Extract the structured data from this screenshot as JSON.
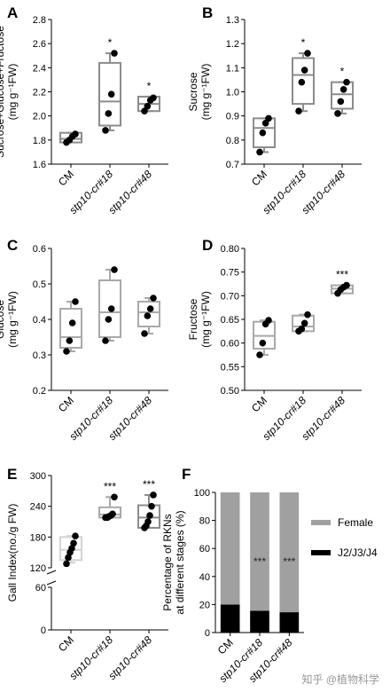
{
  "watermark": "知乎 @植物科学",
  "chart_data": [
    {
      "id": "A",
      "type": "box",
      "panel_label": "A",
      "categories": [
        "CM",
        "stp10-cr#18",
        "stp10-cr#48"
      ],
      "ylabel_lines": [
        "Sucrose+Glucose+Fructose",
        "(mg g⁻¹FW)"
      ],
      "ylim": [
        1.6,
        2.8
      ],
      "yticks": [
        "1.6",
        "1.8",
        "2.0",
        "2.2",
        "2.4",
        "2.6",
        "2.8"
      ],
      "box_colors": [
        "#8c8c8c",
        "#8c8c8c",
        "#8c8c8c"
      ],
      "boxes": [
        {
          "min": 1.78,
          "q1": 1.78,
          "median": 1.81,
          "q3": 1.86,
          "max": 1.86
        },
        {
          "min": 1.88,
          "q1": 1.92,
          "median": 2.12,
          "q3": 2.44,
          "max": 2.52
        },
        {
          "min": 2.04,
          "q1": 2.04,
          "median": 2.1,
          "q3": 2.16,
          "max": 2.16
        }
      ],
      "points": [
        [
          1.78,
          1.8,
          1.83,
          1.85
        ],
        [
          1.88,
          2.02,
          2.18,
          2.52
        ],
        [
          2.04,
          2.08,
          2.13,
          2.15
        ]
      ],
      "signif": [
        "",
        "*",
        "*"
      ]
    },
    {
      "id": "B",
      "type": "box",
      "panel_label": "B",
      "categories": [
        "CM",
        "stp10-cr#18",
        "stp10-cr#48"
      ],
      "ylabel_lines": [
        "Sucrose",
        "(mg g⁻¹FW)"
      ],
      "ylim": [
        0.7,
        1.3
      ],
      "yticks": [
        "0.7",
        "0.8",
        "0.9",
        "1.0",
        "1.1",
        "1.2",
        "1.3"
      ],
      "box_colors": [
        "#8c8c8c",
        "#8c8c8c",
        "#8c8c8c"
      ],
      "boxes": [
        {
          "min": 0.75,
          "q1": 0.77,
          "median": 0.85,
          "q3": 0.89,
          "max": 0.89
        },
        {
          "min": 0.92,
          "q1": 0.95,
          "median": 1.07,
          "q3": 1.14,
          "max": 1.16
        },
        {
          "min": 0.91,
          "q1": 0.93,
          "median": 0.99,
          "q3": 1.04,
          "max": 1.04
        }
      ],
      "points": [
        [
          0.75,
          0.83,
          0.87,
          0.89
        ],
        [
          0.92,
          1.04,
          1.09,
          1.16
        ],
        [
          0.91,
          0.96,
          1.01,
          1.04
        ]
      ],
      "signif": [
        "",
        "*",
        "*"
      ]
    },
    {
      "id": "C",
      "type": "box",
      "panel_label": "C",
      "categories": [
        "CM",
        "stp10-cr#18",
        "stp10-cr#48"
      ],
      "ylabel_lines": [
        "Glucose",
        "(mg g⁻¹FW)"
      ],
      "ylim": [
        0.2,
        0.6
      ],
      "yticks": [
        "0.2",
        "0.3",
        "0.4",
        "0.5",
        "0.6"
      ],
      "box_colors": [
        "#a9a9a9",
        "#a9a9a9",
        "#a9a9a9"
      ],
      "boxes": [
        {
          "min": 0.31,
          "q1": 0.32,
          "median": 0.35,
          "q3": 0.43,
          "max": 0.45
        },
        {
          "min": 0.34,
          "q1": 0.35,
          "median": 0.42,
          "q3": 0.51,
          "max": 0.54
        },
        {
          "min": 0.36,
          "q1": 0.38,
          "median": 0.42,
          "q3": 0.45,
          "max": 0.46
        }
      ],
      "points": [
        [
          0.31,
          0.34,
          0.39,
          0.45
        ],
        [
          0.34,
          0.4,
          0.43,
          0.54
        ],
        [
          0.36,
          0.41,
          0.43,
          0.46
        ]
      ],
      "signif": [
        "",
        "",
        ""
      ]
    },
    {
      "id": "D",
      "type": "box",
      "panel_label": "D",
      "categories": [
        "CM",
        "stp10-cr#18",
        "stp10-cr#48"
      ],
      "ylabel_lines": [
        "Fructose",
        "(mg g⁻¹FW)"
      ],
      "ylim": [
        0.5,
        0.8
      ],
      "yticks": [
        "0.50",
        "0.55",
        "0.60",
        "0.65",
        "0.70",
        "0.75",
        "0.80"
      ],
      "box_colors": [
        "#a9a9a9",
        "#a9a9a9",
        "#a9a9a9"
      ],
      "boxes": [
        {
          "min": 0.575,
          "q1": 0.588,
          "median": 0.615,
          "q3": 0.645,
          "max": 0.648
        },
        {
          "min": 0.625,
          "q1": 0.625,
          "median": 0.635,
          "q3": 0.658,
          "max": 0.66
        },
        {
          "min": 0.705,
          "q1": 0.705,
          "median": 0.715,
          "q3": 0.722,
          "max": 0.722
        }
      ],
      "points": [
        [
          0.575,
          0.6,
          0.64,
          0.648
        ],
        [
          0.625,
          0.63,
          0.642,
          0.66
        ],
        [
          0.705,
          0.713,
          0.718,
          0.722
        ]
      ],
      "signif": [
        "",
        "",
        "***"
      ]
    },
    {
      "id": "E",
      "type": "box",
      "panel_label": "E",
      "categories": [
        "CM",
        "stp10-cr#18",
        "stp10-cr#48"
      ],
      "ylabel_lines": [
        "Gall Index(no./g FW)"
      ],
      "ylim": [
        0,
        300
      ],
      "broken_axis": [
        60,
        120
      ],
      "yticks": [
        "0",
        "60",
        "120",
        "180",
        "240",
        "300"
      ],
      "box_colors": [
        "#d3d3d3",
        "#a9a9a9",
        "#8c8c8c"
      ],
      "boxes": [
        {
          "min": 130,
          "q1": 135,
          "median": 155,
          "q3": 180,
          "max": 182
        },
        {
          "min": 218,
          "q1": 218,
          "median": 224,
          "q3": 238,
          "max": 258
        },
        {
          "min": 198,
          "q1": 198,
          "median": 218,
          "q3": 242,
          "max": 262
        }
      ],
      "points": [
        [
          128,
          140,
          150,
          158,
          168,
          182
        ],
        [
          218,
          218,
          220,
          222,
          225,
          258
        ],
        [
          198,
          202,
          210,
          222,
          240,
          262
        ]
      ],
      "signif": [
        "",
        "***",
        "***"
      ]
    },
    {
      "id": "F",
      "type": "bar",
      "panel_label": "F",
      "stacked": true,
      "categories": [
        "CM",
        "stp10-cr#18",
        "stp10-cr#48"
      ],
      "ylabel_lines": [
        "Percentage of RKNs",
        "at different stages (%)"
      ],
      "ylim": [
        0,
        100
      ],
      "yticks": [
        "0",
        "20",
        "40",
        "60",
        "80",
        "100"
      ],
      "series": [
        {
          "name": "J2/J3/J4",
          "color": "#000000",
          "values": [
            20,
            15.5,
            14.5
          ]
        },
        {
          "name": "Female",
          "color": "#a0a0a0",
          "values": [
            80,
            84.5,
            85.5
          ]
        }
      ],
      "signif": [
        "",
        "***",
        "***"
      ],
      "legend": "right"
    }
  ]
}
